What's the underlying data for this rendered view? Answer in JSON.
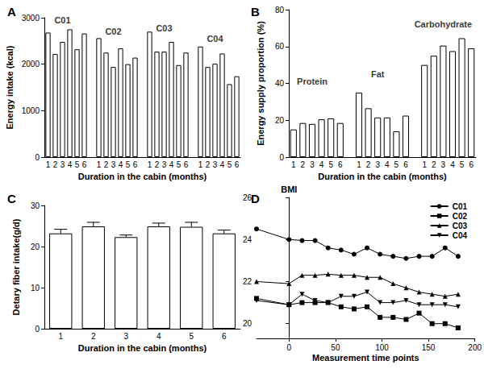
{
  "chart_data": [
    {
      "type": "bar",
      "title": "A",
      "xlabel": "Duration in the cabin (months)",
      "ylabel": "Energy intake (kcal)",
      "categories": [
        "1",
        "2",
        "3",
        "4",
        "5",
        "6",
        null,
        "1",
        "2",
        "3",
        "4",
        "5",
        "6",
        null,
        "1",
        "2",
        "3",
        "4",
        "5",
        "6",
        null,
        "1",
        "2",
        "3",
        "4",
        "5",
        "6"
      ],
      "values": [
        2680,
        2220,
        2480,
        2750,
        2320,
        2660,
        null,
        2560,
        2250,
        1940,
        2340,
        2000,
        2140,
        null,
        2700,
        2270,
        2270,
        2480,
        1980,
        2250,
        null,
        2380,
        1940,
        2010,
        2230,
        1570,
        1740
      ],
      "color": "#ffffff",
      "ylim": [
        0,
        3000
      ],
      "yticks": [
        0,
        1000,
        2000,
        3000
      ],
      "grid": false,
      "annotations": [
        {
          "text": "C01",
          "x": 2,
          "y": 2950
        },
        {
          "text": "C02",
          "x": 9,
          "y": 2700
        },
        {
          "text": "C03",
          "x": 16,
          "y": 2780
        },
        {
          "text": "C04",
          "x": 23,
          "y": 2550
        }
      ]
    },
    {
      "type": "bar",
      "title": "B",
      "xlabel": "Duration in the cabin (months)",
      "ylabel": "Energy supply proportion (%)",
      "categories": [
        "1",
        "2",
        "3",
        "4",
        "5",
        "6",
        null,
        "1",
        "2",
        "3",
        "4",
        "5",
        "6",
        null,
        "1",
        "2",
        "3",
        "4",
        "5",
        "6"
      ],
      "values": [
        15,
        18.5,
        18,
        20.5,
        21,
        18.5,
        null,
        35,
        26.5,
        21.5,
        21.5,
        14,
        22.5,
        null,
        50,
        55,
        60.5,
        57.5,
        64.5,
        59
      ],
      "color": "#ffffff",
      "ylim": [
        0,
        80
      ],
      "yticks": [
        0,
        20,
        40,
        60,
        80
      ],
      "grid": false,
      "annotations": [
        {
          "text": "Protein",
          "x": 2,
          "y": 41
        },
        {
          "text": "Fat",
          "x": 9,
          "y": 45
        },
        {
          "text": "Carbohydrate",
          "x": 16,
          "y": 72
        }
      ]
    },
    {
      "type": "bar",
      "title": "C",
      "xlabel": "Duration in the cabin (months)",
      "ylabel": "Detary fiber intake(g/d)",
      "categories": [
        "1",
        "2",
        "3",
        "4",
        "5",
        "6"
      ],
      "values": [
        23.2,
        24.9,
        22.3,
        24.9,
        24.8,
        23.2
      ],
      "errors": [
        1.0,
        1.0,
        0.5,
        0.8,
        1.1,
        0.8
      ],
      "color": "#ffffff",
      "ylim": [
        0,
        30
      ],
      "yticks": [
        0,
        10,
        20,
        30
      ],
      "grid": false
    },
    {
      "type": "line",
      "title": "D",
      "xlabel": "Measurement time points",
      "ylabel": "BMI",
      "x": [
        -35,
        0,
        14,
        28,
        42,
        56,
        70,
        84,
        98,
        112,
        126,
        140,
        154,
        168,
        182
      ],
      "series": [
        {
          "name": "C01",
          "color": "#000000",
          "marker": "circle",
          "values": [
            24.5,
            24.0,
            23.95,
            23.95,
            23.6,
            23.5,
            23.3,
            23.6,
            23.3,
            23.2,
            23.1,
            23.2,
            23.2,
            23.6,
            23.2
          ]
        },
        {
          "name": "C02",
          "color": "#000000",
          "marker": "square",
          "values": [
            21.2,
            20.9,
            21.0,
            21.0,
            21.0,
            20.8,
            20.7,
            20.8,
            20.3,
            20.3,
            20.2,
            20.5,
            20.0,
            20.0,
            19.8
          ]
        },
        {
          "name": "C03",
          "color": "#000000",
          "marker": "triangle",
          "values": [
            22.0,
            21.9,
            22.3,
            22.3,
            22.35,
            22.3,
            22.3,
            22.2,
            22.2,
            21.9,
            21.7,
            21.5,
            21.4,
            21.3,
            21.4
          ]
        },
        {
          "name": "C04",
          "color": "#000000",
          "marker": "triangle-down",
          "values": [
            21.1,
            20.9,
            21.4,
            21.1,
            21.0,
            21.3,
            21.3,
            21.5,
            21.0,
            21.0,
            21.1,
            20.9,
            20.9,
            20.9,
            20.8
          ]
        }
      ],
      "xlim": [
        -35,
        200
      ],
      "xticks": [
        0,
        50,
        100,
        150,
        200
      ],
      "ylim": [
        19.3,
        26
      ],
      "yticks": [
        20,
        22,
        24,
        26
      ],
      "grid": false,
      "legend": "upper right"
    }
  ]
}
